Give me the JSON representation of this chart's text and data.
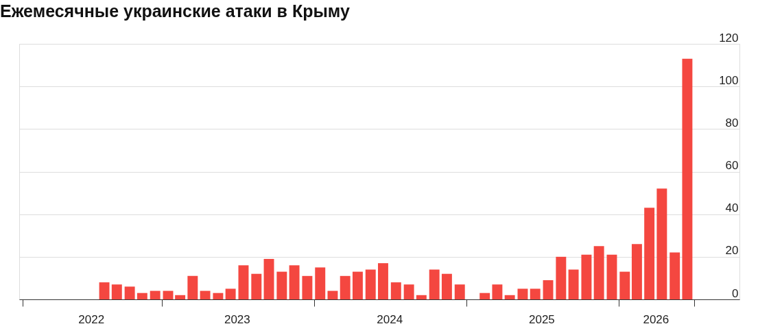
{
  "chart_data": {
    "type": "bar",
    "title": "Ежемесячные украинские атаки в Крыму",
    "x": [
      "2022-08-16",
      "2022-09-15",
      "2022-10-16",
      "2022-11-15",
      "2022-12-16",
      "2023-01-16",
      "2023-02-14",
      "2023-03-16",
      "2023-04-15",
      "2023-05-16",
      "2023-06-15",
      "2023-07-16",
      "2023-08-16",
      "2023-09-15",
      "2023-10-16",
      "2023-11-15",
      "2023-12-16",
      "2024-01-16",
      "2024-02-15",
      "2024-03-16",
      "2024-04-15",
      "2024-05-16",
      "2024-06-15",
      "2024-07-16",
      "2024-08-16",
      "2024-09-15",
      "2024-10-16",
      "2024-11-15",
      "2024-12-16",
      "2025-01-16",
      "2025-02-14",
      "2025-03-16",
      "2025-04-15",
      "2025-05-16",
      "2025-06-15",
      "2025-07-16",
      "2025-08-16",
      "2025-09-15",
      "2025-10-16",
      "2025-11-15",
      "2025-12-16",
      "2026-01-16",
      "2026-02-14",
      "2026-03-16",
      "2026-04-15",
      "2026-05-16",
      "2026-06-15"
    ],
    "values": [
      8,
      7,
      6,
      3,
      4,
      4,
      2,
      11,
      4,
      3,
      5,
      16,
      12,
      19,
      13,
      16,
      11,
      15,
      4,
      11,
      13,
      14,
      17,
      8,
      7,
      2,
      14,
      12,
      7,
      0,
      3,
      7,
      2,
      5,
      5,
      9,
      20,
      14,
      21,
      25,
      21,
      13,
      26,
      43,
      52,
      22,
      113
    ],
    "color": "#f44740",
    "xlim": [
      "2022-02-01",
      "2026-10-10"
    ],
    "xticks": [
      {
        "value": "2022-02-01",
        "label": null
      },
      {
        "value": "2022-07-16",
        "label": "2022"
      },
      {
        "value": "2023-01-01",
        "label": null
      },
      {
        "value": "2023-07-01",
        "label": "2023"
      },
      {
        "value": "2024-01-01",
        "label": null
      },
      {
        "value": "2024-07-01",
        "label": "2024"
      },
      {
        "value": "2025-01-01",
        "label": null
      },
      {
        "value": "2025-07-01",
        "label": "2025"
      },
      {
        "value": "2026-01-01",
        "label": null
      },
      {
        "value": "2026-04-01",
        "label": "2026"
      },
      {
        "value": "2026-07-01",
        "label": null
      }
    ],
    "ylim": [
      0,
      120
    ],
    "yticks": [
      0,
      20,
      40,
      60,
      80,
      100,
      120
    ],
    "grid": "y"
  }
}
